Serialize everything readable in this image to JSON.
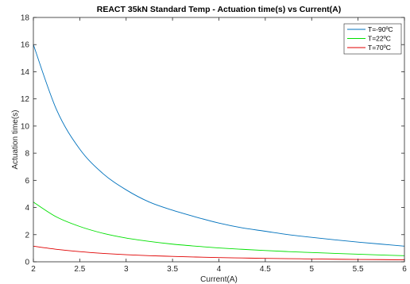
{
  "chart_data": {
    "type": "line",
    "title": "REACT 35kN Standard Temp - Actuation time(s) vs Current(A)",
    "xlabel": "Current(A)",
    "ylabel": "Actuation time(s)",
    "xlim": [
      2,
      6
    ],
    "ylim": [
      0,
      18
    ],
    "xticks": [
      "2",
      "2.5",
      "3",
      "3.5",
      "4",
      "4.5",
      "5",
      "5.5",
      "6"
    ],
    "yticks": [
      "0",
      "2",
      "4",
      "6",
      "8",
      "10",
      "12",
      "14",
      "16",
      "18"
    ],
    "grid": false,
    "legend_position": "top-right",
    "x": [
      2,
      2.25,
      2.5,
      2.75,
      3,
      3.25,
      3.5,
      3.75,
      4,
      4.25,
      4.5,
      4.75,
      5,
      5.25,
      5.5,
      5.75,
      6
    ],
    "series": [
      {
        "name": "T=-90ºC",
        "color": "#0072bd",
        "values": [
          16.0,
          11.2,
          8.3,
          6.5,
          5.3,
          4.4,
          3.8,
          3.3,
          2.85,
          2.5,
          2.25,
          2.0,
          1.8,
          1.62,
          1.45,
          1.3,
          1.15
        ]
      },
      {
        "name": "T=22ºC",
        "color": "#00e000",
        "values": [
          4.4,
          3.3,
          2.6,
          2.1,
          1.75,
          1.5,
          1.3,
          1.15,
          1.02,
          0.92,
          0.83,
          0.75,
          0.68,
          0.62,
          0.56,
          0.5,
          0.45
        ]
      },
      {
        "name": "T=70ºC",
        "color": "#e00000",
        "values": [
          1.15,
          0.92,
          0.75,
          0.62,
          0.52,
          0.45,
          0.4,
          0.35,
          0.31,
          0.28,
          0.25,
          0.23,
          0.21,
          0.19,
          0.17,
          0.16,
          0.14
        ]
      }
    ]
  }
}
